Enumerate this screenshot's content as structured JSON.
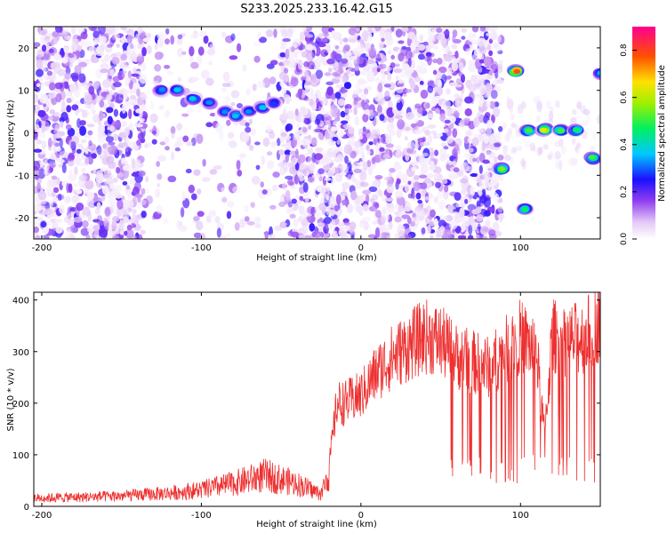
{
  "title": "S233.2025.233.16.42.G15",
  "chart_data": [
    {
      "type": "heatmap",
      "xlabel": "Height of straight line (km)",
      "ylabel": "Frequency (Hz)",
      "xlim": [
        -205,
        150
      ],
      "ylim": [
        -25,
        25
      ],
      "xticks": [
        -200,
        -100,
        0,
        100
      ],
      "yticks": [
        20,
        10,
        0,
        -10,
        -20
      ],
      "colorbar": {
        "label": "Normalized spectral amplitude",
        "range": [
          0,
          0.9
        ],
        "ticks": [
          0.0,
          0.2,
          0.4,
          0.6,
          0.8
        ]
      },
      "features": [
        {
          "x": -125,
          "y": 10,
          "amplitude": 0.35
        },
        {
          "x": -115,
          "y": 10,
          "amplitude": 0.4
        },
        {
          "x": -105,
          "y": 8,
          "amplitude": 0.4
        },
        {
          "x": -95,
          "y": 7,
          "amplitude": 0.35
        },
        {
          "x": -85,
          "y": 5,
          "amplitude": 0.35
        },
        {
          "x": -78,
          "y": 4,
          "amplitude": 0.4
        },
        {
          "x": -70,
          "y": 5,
          "amplitude": 0.35
        },
        {
          "x": -62,
          "y": 6,
          "amplitude": 0.4
        },
        {
          "x": -55,
          "y": 7,
          "amplitude": 0.3
        },
        {
          "x": 97,
          "y": 14.5,
          "amplitude": 0.85
        },
        {
          "x": 88,
          "y": -8.5,
          "amplitude": 0.6
        },
        {
          "x": 103,
          "y": -18,
          "amplitude": 0.5
        },
        {
          "x": 105,
          "y": 0.5,
          "amplitude": 0.55
        },
        {
          "x": 115,
          "y": 0.7,
          "amplitude": 0.7
        },
        {
          "x": 125,
          "y": 0.6,
          "amplitude": 0.55
        },
        {
          "x": 135,
          "y": 0.5,
          "amplitude": 0.5
        },
        {
          "x": 145,
          "y": -6,
          "amplitude": 0.55
        },
        {
          "x": 150,
          "y": 14,
          "amplitude": 0.4
        }
      ]
    },
    {
      "type": "line",
      "xlabel": "Height of straight line (km)",
      "ylabel": "SNR (10 * v/v)",
      "xlim": [
        -205,
        150
      ],
      "ylim": [
        0,
        415
      ],
      "xticks": [
        -200,
        -100,
        0,
        100
      ],
      "yticks": [
        0,
        100,
        200,
        300,
        400
      ],
      "series": [
        {
          "color": "#ee3030",
          "x": [
            -205,
            -180,
            -150,
            -120,
            -100,
            -80,
            -60,
            -40,
            -25,
            -20,
            -15,
            -10,
            0,
            10,
            20,
            30,
            40,
            50,
            60,
            70,
            80,
            90,
            100,
            110,
            115,
            120,
            130,
            140,
            150
          ],
          "y": [
            20,
            22,
            25,
            32,
            40,
            55,
            75,
            55,
            30,
            80,
            200,
            200,
            215,
            260,
            290,
            310,
            330,
            320,
            290,
            280,
            270,
            300,
            330,
            300,
            140,
            330,
            320,
            330,
            360
          ]
        }
      ]
    }
  ]
}
